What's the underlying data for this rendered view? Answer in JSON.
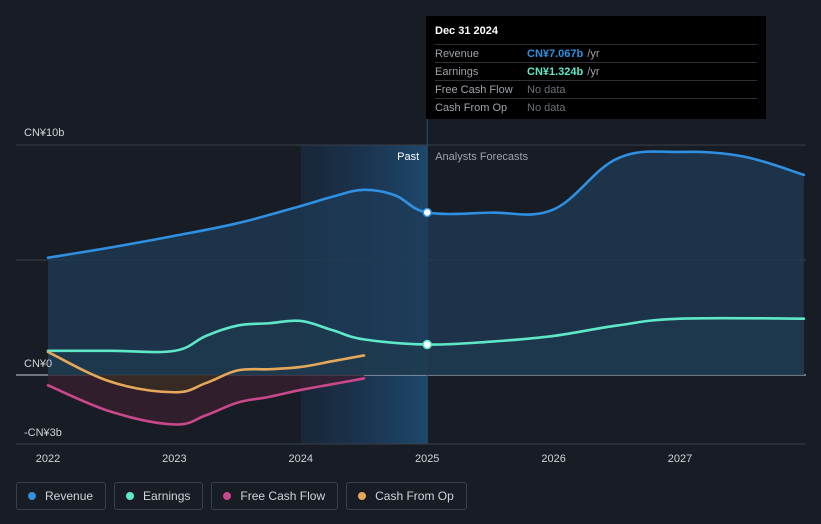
{
  "chart_data": {
    "type": "area",
    "title": "",
    "xlabel": "",
    "ylabel": "",
    "x_ticks": [
      "2022",
      "2023",
      "2024",
      "2025",
      "2026",
      "2027"
    ],
    "y_labels": [
      {
        "value": 10,
        "label": "CN¥10b"
      },
      {
        "value": 0,
        "label": "CN¥0"
      },
      {
        "value": -3,
        "label": "-CN¥3b"
      }
    ],
    "ylim": [
      -3,
      10
    ],
    "xlim": [
      2021.75,
      2027.98
    ],
    "past_label": "Past",
    "forecast_label": "Analysts Forecasts",
    "divider_x": 2025.0,
    "highlight_start_x": 2024.0,
    "series": [
      {
        "name": "Revenue",
        "color": "#2f8fe0",
        "fill": "#1d3b55",
        "x": [
          2022.0,
          2022.5,
          2023.0,
          2023.5,
          2024.0,
          2024.25,
          2024.5,
          2024.75,
          2025.0,
          2025.5,
          2026.0,
          2026.5,
          2027.0,
          2027.5,
          2027.98
        ],
        "y": [
          5.1,
          5.55,
          6.05,
          6.6,
          7.35,
          7.75,
          8.05,
          7.8,
          7.067,
          7.06,
          7.2,
          9.4,
          9.7,
          9.5,
          8.7
        ]
      },
      {
        "name": "Earnings",
        "color": "#5ee8c9",
        "fill": "#1f3a3a",
        "x": [
          2022.0,
          2022.5,
          2023.0,
          2023.25,
          2023.5,
          2023.75,
          2024.0,
          2024.25,
          2024.5,
          2025.0,
          2025.5,
          2026.0,
          2026.5,
          2027.0,
          2027.98
        ],
        "y": [
          1.05,
          1.05,
          1.05,
          1.7,
          2.15,
          2.25,
          2.35,
          1.95,
          1.55,
          1.324,
          1.45,
          1.7,
          2.15,
          2.45,
          2.45
        ]
      },
      {
        "name": "Free Cash Flow",
        "color": "#c9488a",
        "fill": "#3a1f30",
        "x": [
          2022.0,
          2022.5,
          2023.0,
          2023.25,
          2023.5,
          2023.75,
          2024.0,
          2024.25,
          2024.5
        ],
        "y": [
          -0.45,
          -1.6,
          -2.15,
          -1.75,
          -1.2,
          -0.95,
          -0.65,
          -0.4,
          -0.15
        ]
      },
      {
        "name": "Cash From Op",
        "color": "#e5a85a",
        "fill": "#3a2f22",
        "x": [
          2022.0,
          2022.5,
          2023.0,
          2023.25,
          2023.5,
          2023.75,
          2024.0,
          2024.25,
          2024.5
        ],
        "y": [
          1.0,
          -0.3,
          -0.75,
          -0.35,
          0.2,
          0.25,
          0.35,
          0.6,
          0.85
        ]
      }
    ]
  },
  "tooltip": {
    "date": "Dec 31 2024",
    "rows": [
      {
        "label": "Revenue",
        "value": "CN¥7.067b",
        "unit": "/yr",
        "color": "#2f8fe0"
      },
      {
        "label": "Earnings",
        "value": "CN¥1.324b",
        "unit": "/yr",
        "color": "#5ee8c9"
      },
      {
        "label": "Free Cash Flow",
        "value": "No data",
        "unit": ""
      },
      {
        "label": "Cash From Op",
        "value": "No data",
        "unit": ""
      }
    ]
  },
  "legend": [
    {
      "label": "Revenue",
      "color": "#2f8fe0"
    },
    {
      "label": "Earnings",
      "color": "#5ee8c9"
    },
    {
      "label": "Free Cash Flow",
      "color": "#c9488a"
    },
    {
      "label": "Cash From Op",
      "color": "#e5a85a"
    }
  ]
}
